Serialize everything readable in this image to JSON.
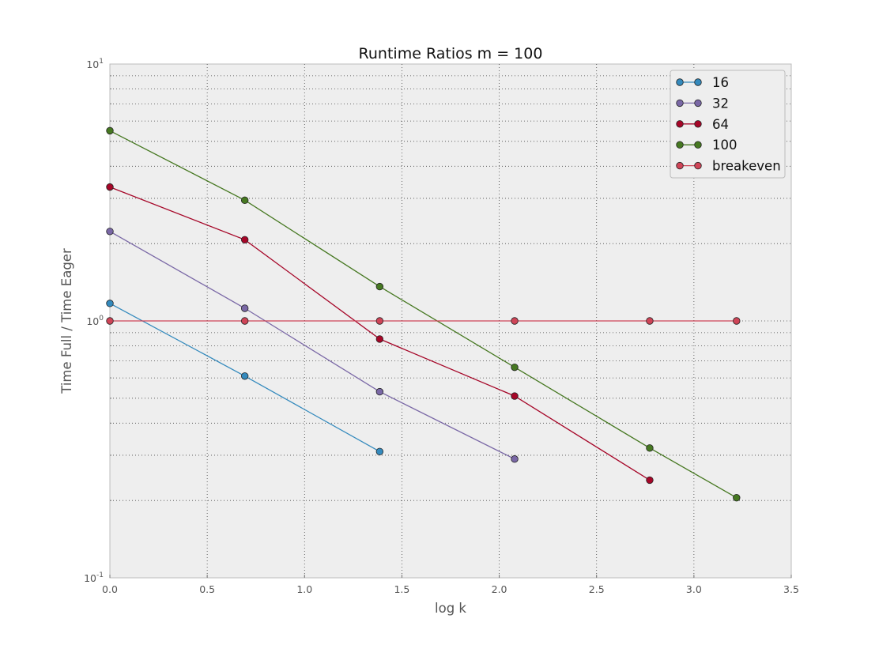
{
  "chart_data": {
    "type": "line",
    "title": "Runtime Ratios m = 100",
    "xlabel": "log k",
    "ylabel": "Time Full / Time Eager",
    "xlim": [
      0,
      3.5
    ],
    "ylim": [
      0.1,
      10
    ],
    "yscale": "log",
    "grid": true,
    "legend_position": "top-right",
    "x_ticks": [
      {
        "value": 0.0,
        "label": "0.0"
      },
      {
        "value": 0.5,
        "label": "0.5"
      },
      {
        "value": 1.0,
        "label": "1.0"
      },
      {
        "value": 1.5,
        "label": "1.5"
      },
      {
        "value": 2.0,
        "label": "2.0"
      },
      {
        "value": 2.5,
        "label": "2.5"
      },
      {
        "value": 3.0,
        "label": "3.0"
      },
      {
        "value": 3.5,
        "label": "3.5"
      }
    ],
    "y_ticks": [
      {
        "value": 0.1,
        "base": "10",
        "exp": "-1"
      },
      {
        "value": 1,
        "base": "10",
        "exp": "0"
      },
      {
        "value": 10,
        "base": "10",
        "exp": "1"
      }
    ],
    "series": [
      {
        "name": "16",
        "color": "#348abd",
        "x": [
          0.0,
          0.693,
          1.386
        ],
        "values": [
          1.17,
          0.61,
          0.31
        ]
      },
      {
        "name": "32",
        "color": "#7a68a6",
        "x": [
          0.0,
          0.693,
          1.386,
          2.079
        ],
        "values": [
          2.23,
          1.12,
          0.53,
          0.29
        ]
      },
      {
        "name": "64",
        "color": "#a60628",
        "x": [
          0.0,
          0.693,
          1.386,
          2.079,
          2.773
        ],
        "values": [
          3.32,
          2.07,
          0.85,
          0.51,
          0.24
        ]
      },
      {
        "name": "100",
        "color": "#467821",
        "x": [
          0.0,
          0.693,
          1.386,
          2.079,
          2.773,
          3.219
        ],
        "values": [
          5.5,
          2.95,
          1.36,
          0.66,
          0.32,
          0.205
        ]
      },
      {
        "name": "breakeven",
        "color": "#cf4457",
        "x": [
          0.0,
          0.693,
          1.386,
          2.079,
          2.773,
          3.219
        ],
        "values": [
          1,
          1,
          1,
          1,
          1,
          1
        ]
      }
    ]
  }
}
